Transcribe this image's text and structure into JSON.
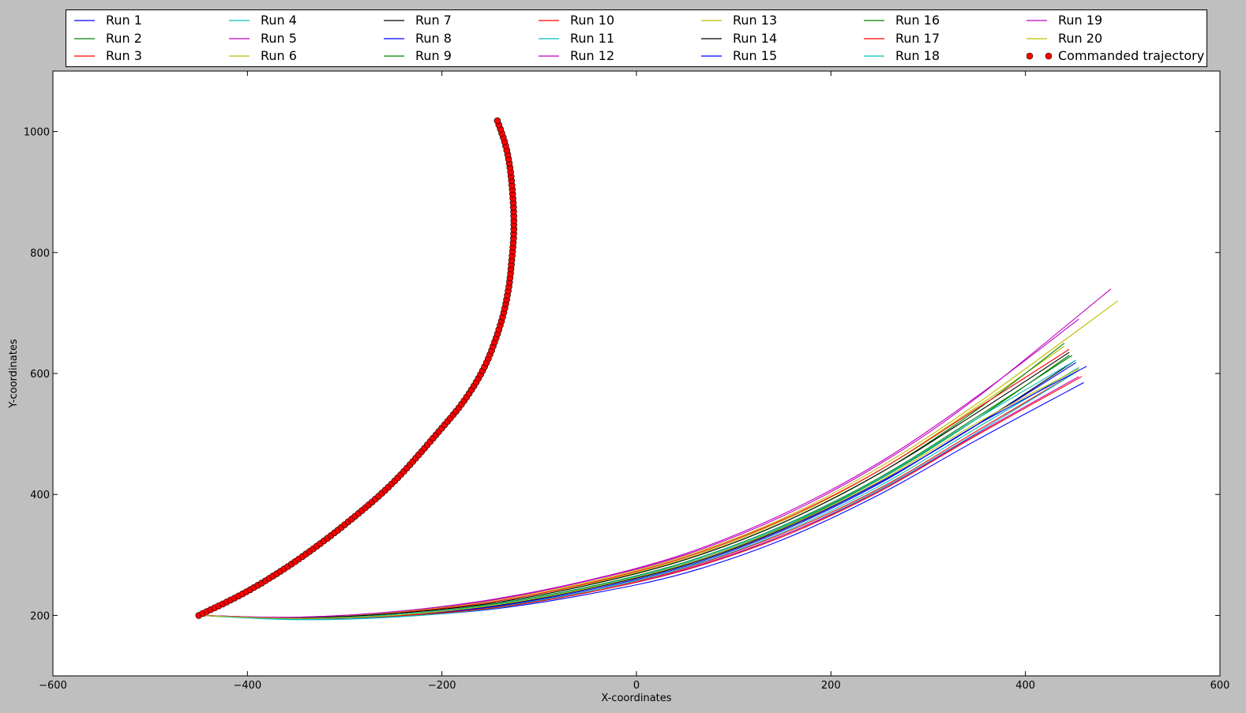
{
  "chart_data": {
    "type": "line",
    "title": "",
    "xlabel": "X-coordinates",
    "ylabel": "Y-coordinates",
    "xlim": [
      -600,
      600
    ],
    "ylim": [
      100,
      1100
    ],
    "xticks": [
      -600,
      -400,
      -200,
      0,
      200,
      400,
      600
    ],
    "yticks": [
      200,
      400,
      600,
      800,
      1000
    ],
    "grid": false,
    "legend_position": "top, 7 columns",
    "commanded": {
      "name": "Commanded trajectory",
      "color": "#ff0000",
      "x": [
        -450,
        -400,
        -350,
        -300,
        -250,
        -200,
        -175,
        -155,
        -140,
        -132,
        -128,
        -126,
        -127,
        -130,
        -135,
        -143
      ],
      "y": [
        200,
        240,
        290,
        350,
        420,
        510,
        560,
        615,
        680,
        735,
        790,
        840,
        890,
        940,
        980,
        1018
      ]
    },
    "series": [
      {
        "name": "Run 1",
        "color": "#0000ff",
        "x": [
          -450,
          -350,
          -250,
          -150,
          -50,
          50,
          150,
          250,
          350,
          460
        ],
        "y": [
          200,
          195,
          198,
          210,
          235,
          270,
          325,
          400,
          490,
          585
        ]
      },
      {
        "name": "Run 2",
        "color": "#008000",
        "x": [
          -450,
          -350,
          -250,
          -150,
          -50,
          50,
          150,
          250,
          350,
          445
        ],
        "y": [
          200,
          196,
          201,
          217,
          245,
          285,
          345,
          425,
          525,
          630
        ]
      },
      {
        "name": "Run 3",
        "color": "#ff0000",
        "x": [
          -450,
          -350,
          -250,
          -150,
          -50,
          50,
          150,
          250,
          350,
          455
        ],
        "y": [
          200,
          195,
          199,
          213,
          240,
          278,
          335,
          410,
          505,
          605
        ]
      },
      {
        "name": "Run 4",
        "color": "#00bfbf",
        "x": [
          -450,
          -350,
          -250,
          -150,
          -50,
          50,
          150,
          250,
          350,
          450
        ],
        "y": [
          200,
          193,
          197,
          211,
          238,
          275,
          332,
          408,
          502,
          600
        ]
      },
      {
        "name": "Run 5",
        "color": "#bf00bf",
        "x": [
          -450,
          -350,
          -250,
          -150,
          -50,
          50,
          150,
          250,
          350,
          455
        ],
        "y": [
          200,
          195,
          199,
          212,
          238,
          276,
          332,
          406,
          500,
          595
        ]
      },
      {
        "name": "Run 6",
        "color": "#bfbf00",
        "x": [
          -450,
          -350,
          -250,
          -150,
          -50,
          50,
          150,
          250,
          350,
          440
        ],
        "y": [
          200,
          196,
          204,
          222,
          252,
          294,
          356,
          440,
          545,
          645
        ]
      },
      {
        "name": "Run 7",
        "color": "#000000",
        "x": [
          -450,
          -350,
          -250,
          -150,
          -50,
          50,
          150,
          250,
          350,
          450
        ],
        "y": [
          200,
          195,
          200,
          215,
          244,
          283,
          342,
          420,
          515,
          620
        ]
      },
      {
        "name": "Run 8",
        "color": "#0000ff",
        "x": [
          -450,
          -350,
          -250,
          -150,
          -50,
          50,
          150,
          250,
          350,
          452
        ],
        "y": [
          200,
          195,
          200,
          216,
          245,
          285,
          343,
          420,
          515,
          618
        ]
      },
      {
        "name": "Run 9",
        "color": "#008000",
        "x": [
          -450,
          -350,
          -250,
          -150,
          -50,
          50,
          150,
          250,
          350,
          440
        ],
        "y": [
          200,
          196,
          203,
          220,
          250,
          292,
          353,
          435,
          540,
          650
        ]
      },
      {
        "name": "Run 10",
        "color": "#ff0000",
        "x": [
          -450,
          -350,
          -250,
          -150,
          -50,
          50,
          150,
          250,
          350,
          445
        ],
        "y": [
          200,
          196,
          204,
          222,
          253,
          296,
          358,
          440,
          542,
          640
        ]
      },
      {
        "name": "Run 11",
        "color": "#00bfbf",
        "x": [
          -450,
          -350,
          -250,
          -150,
          -50,
          50,
          150,
          250,
          350,
          455
        ],
        "y": [
          200,
          194,
          198,
          213,
          240,
          279,
          337,
          414,
          510,
          610
        ]
      },
      {
        "name": "Run 12",
        "color": "#bf00bf",
        "x": [
          -450,
          -350,
          -250,
          -150,
          -50,
          50,
          150,
          250,
          350,
          455
        ],
        "y": [
          200,
          197,
          206,
          226,
          258,
          302,
          367,
          453,
          562,
          690
        ]
      },
      {
        "name": "Run 13",
        "color": "#bfbf00",
        "x": [
          -450,
          -350,
          -250,
          -150,
          -50,
          50,
          150,
          250,
          350,
          495
        ],
        "y": [
          200,
          196,
          205,
          224,
          255,
          298,
          360,
          445,
          550,
          720
        ]
      },
      {
        "name": "Run 14",
        "color": "#000000",
        "x": [
          -450,
          -350,
          -250,
          -150,
          -50,
          50,
          150,
          250,
          350,
          445
        ],
        "y": [
          200,
          196,
          203,
          220,
          250,
          292,
          353,
          435,
          535,
          635
        ]
      },
      {
        "name": "Run 15",
        "color": "#0000ff",
        "x": [
          -450,
          -350,
          -250,
          -150,
          -50,
          50,
          150,
          250,
          350,
          463
        ],
        "y": [
          200,
          195,
          199,
          214,
          242,
          281,
          340,
          418,
          515,
          612
        ]
      },
      {
        "name": "Run 16",
        "color": "#008000",
        "x": [
          -450,
          -350,
          -250,
          -150,
          -50,
          50,
          150,
          250,
          350,
          448
        ],
        "y": [
          200,
          195,
          201,
          218,
          247,
          288,
          348,
          428,
          528,
          630
        ]
      },
      {
        "name": "Run 17",
        "color": "#ff0000",
        "x": [
          -450,
          -350,
          -250,
          -150,
          -50,
          50,
          150,
          250,
          350,
          458
        ],
        "y": [
          200,
          195,
          199,
          212,
          238,
          275,
          330,
          405,
          498,
          595
        ]
      },
      {
        "name": "Run 18",
        "color": "#00bfbf",
        "x": [
          -450,
          -350,
          -250,
          -150,
          -50,
          50,
          150,
          250,
          350,
          452
        ],
        "y": [
          200,
          195,
          201,
          217,
          246,
          287,
          347,
          426,
          525,
          622
        ]
      },
      {
        "name": "Run 19",
        "color": "#bf00bf",
        "x": [
          -450,
          -350,
          -250,
          -150,
          -50,
          50,
          150,
          250,
          350,
          488
        ],
        "y": [
          200,
          197,
          206,
          225,
          257,
          300,
          364,
          450,
          560,
          740
        ]
      },
      {
        "name": "Run 20",
        "color": "#bfbf00",
        "x": [
          -450,
          -350,
          -250,
          -150,
          -50,
          50,
          150,
          250,
          350,
          455
        ],
        "y": [
          200,
          195,
          200,
          216,
          245,
          285,
          344,
          422,
          518,
          608
        ]
      }
    ]
  }
}
